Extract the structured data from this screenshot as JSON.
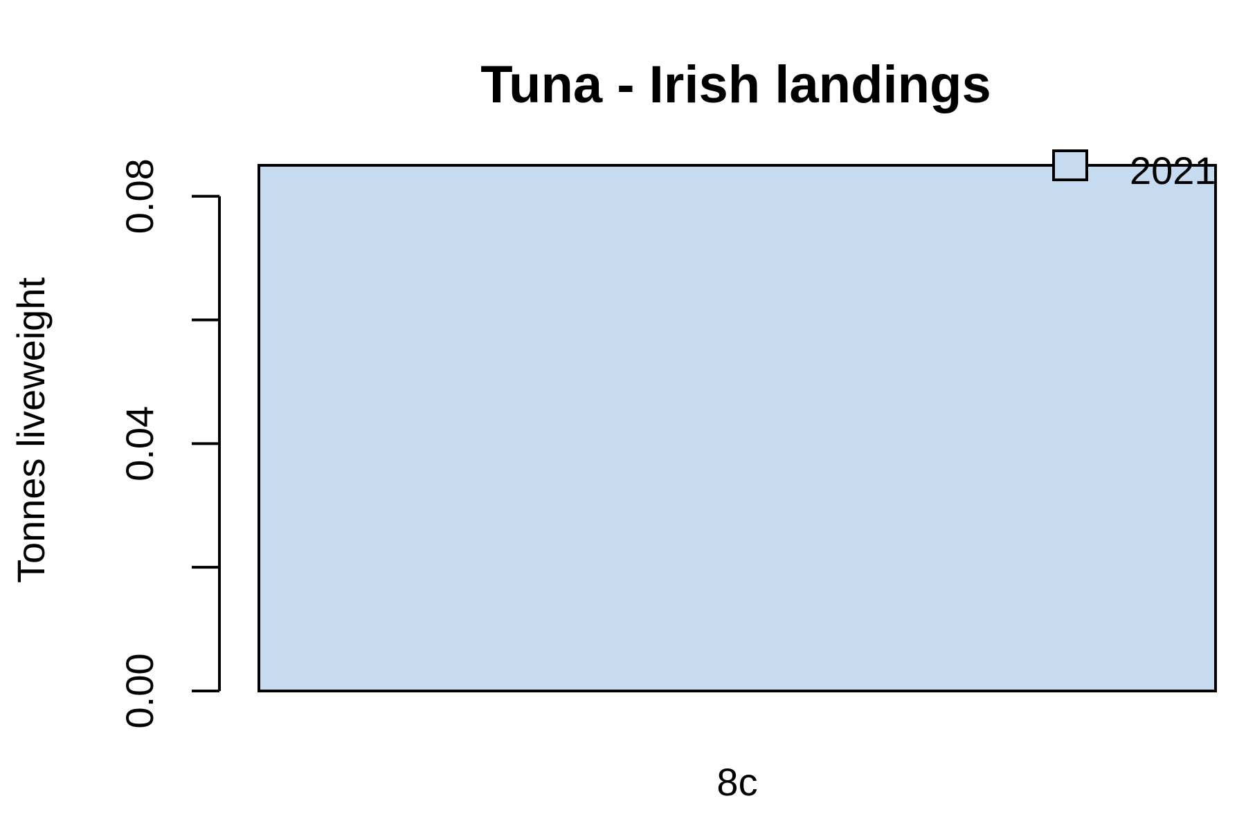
{
  "chart_data": {
    "type": "bar",
    "title": "Tuna - Irish landings",
    "xlabel": "",
    "ylabel": "Tonnes liveweight",
    "categories": [
      "8c"
    ],
    "series": [
      {
        "name": "2021",
        "values": [
          0.085
        ],
        "color": "#c6dbef"
      }
    ],
    "ylim": [
      0,
      0.085
    ],
    "yticks": [
      0,
      0.02,
      0.04,
      0.06,
      0.08
    ],
    "ytick_labels": [
      "0.00",
      "",
      "0.04",
      "",
      "0.08"
    ],
    "grid": false,
    "legend_position": "top-right"
  }
}
